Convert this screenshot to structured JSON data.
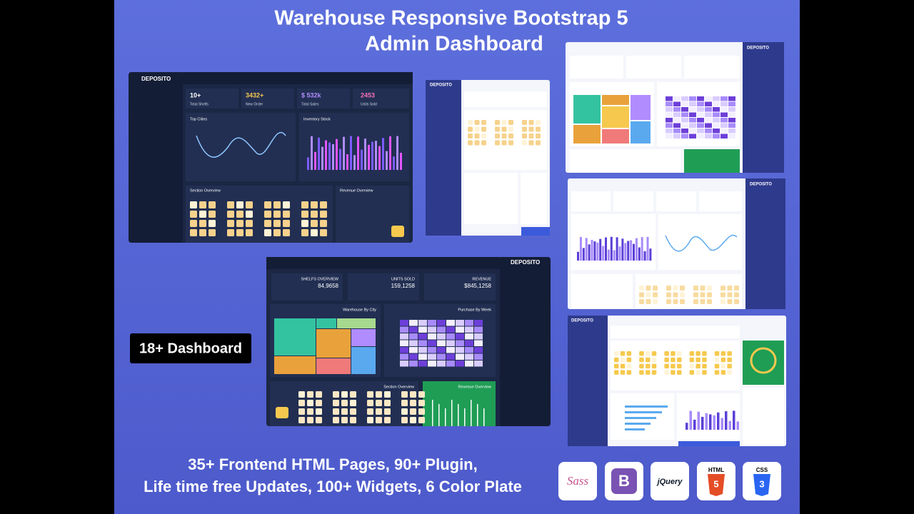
{
  "header": {
    "title_line1": "Warehouse Responsive Bootstrap 5",
    "title_line2": "Admin Dashboard"
  },
  "brand": "DEPOSITO",
  "dashboard1": {
    "stats": [
      {
        "value": "10+",
        "label": "Total Shelfs"
      },
      {
        "value": "3432+",
        "label": "New Order"
      },
      {
        "value": "$ 532k",
        "label": "Total Sales"
      },
      {
        "value": "2453",
        "label": "Units Sold"
      }
    ],
    "cards": [
      "Top Cities",
      "Inventory Stock",
      "Section Overview",
      "Revenue Overview"
    ]
  },
  "dashboard2": {
    "stats": [
      {
        "label": "SHELFS OVERVIEW",
        "value": "84,9658"
      },
      {
        "label": "UNITS SOLD",
        "value": "159,1258"
      },
      {
        "label": "REVENUE",
        "value": "$845,1258"
      }
    ],
    "cards": [
      "Warehouse By City",
      "Purchase By Week",
      "Section Overview",
      "Revenue Overview"
    ]
  },
  "badge": "18+ Dashboard",
  "footer": {
    "line1": "35+ Frontend HTML Pages, 90+ Plugin,",
    "line2": "Life time free Updates, 100+ Widgets, 6 Color Plate"
  },
  "icons": [
    "Sass",
    "jQuery",
    "HTML",
    "CSS"
  ]
}
